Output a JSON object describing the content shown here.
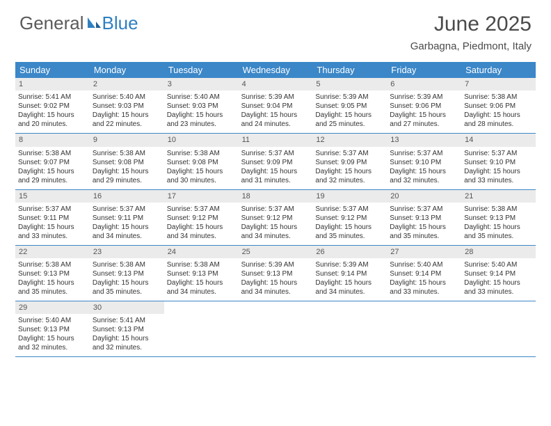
{
  "logo": {
    "text1": "General",
    "text2": "Blue"
  },
  "title": "June 2025",
  "location": "Garbagna, Piedmont, Italy",
  "colors": {
    "header_bar": "#3b87c8",
    "daynum_bg": "#ebebeb",
    "text": "#333333",
    "title_text": "#4a4a4a",
    "logo_gray": "#5a5a5a",
    "logo_blue": "#2f7fc1",
    "background": "#ffffff"
  },
  "day_labels": [
    "Sunday",
    "Monday",
    "Tuesday",
    "Wednesday",
    "Thursday",
    "Friday",
    "Saturday"
  ],
  "weeks": [
    [
      {
        "n": "1",
        "sr": "Sunrise: 5:41 AM",
        "ss": "Sunset: 9:02 PM",
        "dl": "Daylight: 15 hours and 20 minutes."
      },
      {
        "n": "2",
        "sr": "Sunrise: 5:40 AM",
        "ss": "Sunset: 9:03 PM",
        "dl": "Daylight: 15 hours and 22 minutes."
      },
      {
        "n": "3",
        "sr": "Sunrise: 5:40 AM",
        "ss": "Sunset: 9:03 PM",
        "dl": "Daylight: 15 hours and 23 minutes."
      },
      {
        "n": "4",
        "sr": "Sunrise: 5:39 AM",
        "ss": "Sunset: 9:04 PM",
        "dl": "Daylight: 15 hours and 24 minutes."
      },
      {
        "n": "5",
        "sr": "Sunrise: 5:39 AM",
        "ss": "Sunset: 9:05 PM",
        "dl": "Daylight: 15 hours and 25 minutes."
      },
      {
        "n": "6",
        "sr": "Sunrise: 5:39 AM",
        "ss": "Sunset: 9:06 PM",
        "dl": "Daylight: 15 hours and 27 minutes."
      },
      {
        "n": "7",
        "sr": "Sunrise: 5:38 AM",
        "ss": "Sunset: 9:06 PM",
        "dl": "Daylight: 15 hours and 28 minutes."
      }
    ],
    [
      {
        "n": "8",
        "sr": "Sunrise: 5:38 AM",
        "ss": "Sunset: 9:07 PM",
        "dl": "Daylight: 15 hours and 29 minutes."
      },
      {
        "n": "9",
        "sr": "Sunrise: 5:38 AM",
        "ss": "Sunset: 9:08 PM",
        "dl": "Daylight: 15 hours and 29 minutes."
      },
      {
        "n": "10",
        "sr": "Sunrise: 5:38 AM",
        "ss": "Sunset: 9:08 PM",
        "dl": "Daylight: 15 hours and 30 minutes."
      },
      {
        "n": "11",
        "sr": "Sunrise: 5:37 AM",
        "ss": "Sunset: 9:09 PM",
        "dl": "Daylight: 15 hours and 31 minutes."
      },
      {
        "n": "12",
        "sr": "Sunrise: 5:37 AM",
        "ss": "Sunset: 9:09 PM",
        "dl": "Daylight: 15 hours and 32 minutes."
      },
      {
        "n": "13",
        "sr": "Sunrise: 5:37 AM",
        "ss": "Sunset: 9:10 PM",
        "dl": "Daylight: 15 hours and 32 minutes."
      },
      {
        "n": "14",
        "sr": "Sunrise: 5:37 AM",
        "ss": "Sunset: 9:10 PM",
        "dl": "Daylight: 15 hours and 33 minutes."
      }
    ],
    [
      {
        "n": "15",
        "sr": "Sunrise: 5:37 AM",
        "ss": "Sunset: 9:11 PM",
        "dl": "Daylight: 15 hours and 33 minutes."
      },
      {
        "n": "16",
        "sr": "Sunrise: 5:37 AM",
        "ss": "Sunset: 9:11 PM",
        "dl": "Daylight: 15 hours and 34 minutes."
      },
      {
        "n": "17",
        "sr": "Sunrise: 5:37 AM",
        "ss": "Sunset: 9:12 PM",
        "dl": "Daylight: 15 hours and 34 minutes."
      },
      {
        "n": "18",
        "sr": "Sunrise: 5:37 AM",
        "ss": "Sunset: 9:12 PM",
        "dl": "Daylight: 15 hours and 34 minutes."
      },
      {
        "n": "19",
        "sr": "Sunrise: 5:37 AM",
        "ss": "Sunset: 9:12 PM",
        "dl": "Daylight: 15 hours and 35 minutes."
      },
      {
        "n": "20",
        "sr": "Sunrise: 5:37 AM",
        "ss": "Sunset: 9:13 PM",
        "dl": "Daylight: 15 hours and 35 minutes."
      },
      {
        "n": "21",
        "sr": "Sunrise: 5:38 AM",
        "ss": "Sunset: 9:13 PM",
        "dl": "Daylight: 15 hours and 35 minutes."
      }
    ],
    [
      {
        "n": "22",
        "sr": "Sunrise: 5:38 AM",
        "ss": "Sunset: 9:13 PM",
        "dl": "Daylight: 15 hours and 35 minutes."
      },
      {
        "n": "23",
        "sr": "Sunrise: 5:38 AM",
        "ss": "Sunset: 9:13 PM",
        "dl": "Daylight: 15 hours and 35 minutes."
      },
      {
        "n": "24",
        "sr": "Sunrise: 5:38 AM",
        "ss": "Sunset: 9:13 PM",
        "dl": "Daylight: 15 hours and 34 minutes."
      },
      {
        "n": "25",
        "sr": "Sunrise: 5:39 AM",
        "ss": "Sunset: 9:13 PM",
        "dl": "Daylight: 15 hours and 34 minutes."
      },
      {
        "n": "26",
        "sr": "Sunrise: 5:39 AM",
        "ss": "Sunset: 9:14 PM",
        "dl": "Daylight: 15 hours and 34 minutes."
      },
      {
        "n": "27",
        "sr": "Sunrise: 5:40 AM",
        "ss": "Sunset: 9:14 PM",
        "dl": "Daylight: 15 hours and 33 minutes."
      },
      {
        "n": "28",
        "sr": "Sunrise: 5:40 AM",
        "ss": "Sunset: 9:14 PM",
        "dl": "Daylight: 15 hours and 33 minutes."
      }
    ],
    [
      {
        "n": "29",
        "sr": "Sunrise: 5:40 AM",
        "ss": "Sunset: 9:13 PM",
        "dl": "Daylight: 15 hours and 32 minutes."
      },
      {
        "n": "30",
        "sr": "Sunrise: 5:41 AM",
        "ss": "Sunset: 9:13 PM",
        "dl": "Daylight: 15 hours and 32 minutes."
      },
      null,
      null,
      null,
      null,
      null
    ]
  ]
}
